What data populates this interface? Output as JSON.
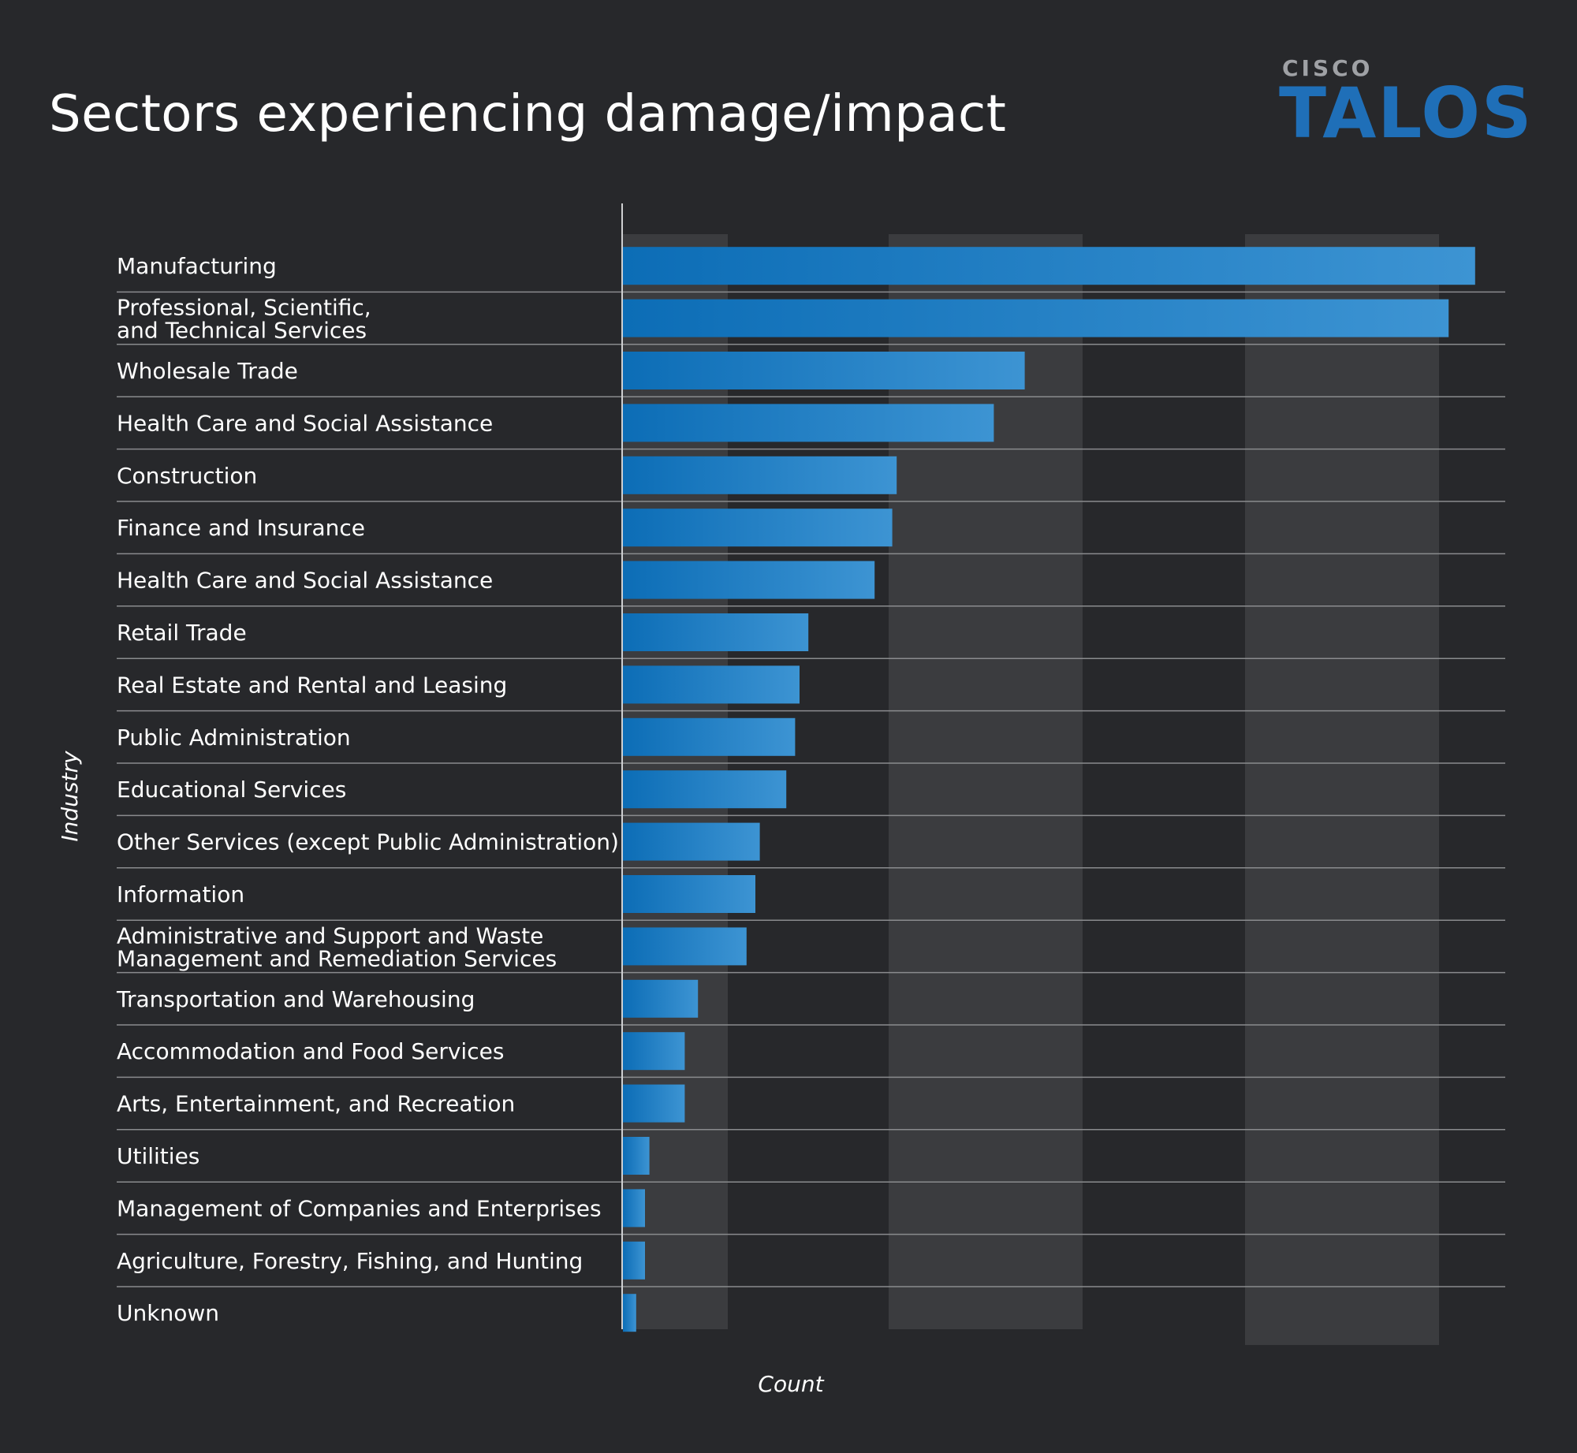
{
  "title": "Sectors experiencing damage/impact",
  "logo": {
    "top_text": "CISCO",
    "main_text": "TALOS",
    "color": "#1f6fb8"
  },
  "chart_data": {
    "type": "bar",
    "orientation": "horizontal",
    "title": "Sectors experiencing damage/impact",
    "xlabel": "Count",
    "ylabel": "Industry",
    "xlim": [
      0,
      100
    ],
    "categories": [
      "Manufacturing",
      "Professional, Scientific,\nand Technical Services",
      "Wholesale Trade",
      "Health Care and Social Assistance",
      "Construction",
      "Finance and Insurance",
      "Health Care and Social Assistance",
      "Retail Trade",
      "Real Estate and Rental and Leasing",
      "Public Administration",
      "Educational Services",
      "Other Services (except Public Administration)",
      "Information",
      "Administrative and Support and Waste\nManagement and Remediation Services",
      "Transportation and Warehousing",
      "Accommodation and Food Services",
      "Arts, Entertainment, and Recreation",
      "Utilities",
      "Management of Companies and Enterprises",
      "Agriculture, Forestry, Fishing, and Hunting",
      "Unknown"
    ],
    "values": [
      96.5,
      93.5,
      45.5,
      42,
      31,
      30.5,
      28.5,
      21,
      20,
      19.5,
      18.5,
      15.5,
      15,
      14,
      8.5,
      7,
      7,
      3,
      2.5,
      2.5,
      1.5
    ],
    "bar_color_start": "#0c6db6",
    "bar_color_end": "#3d94d3",
    "band_color": "#3b3c3f",
    "grid": true
  }
}
